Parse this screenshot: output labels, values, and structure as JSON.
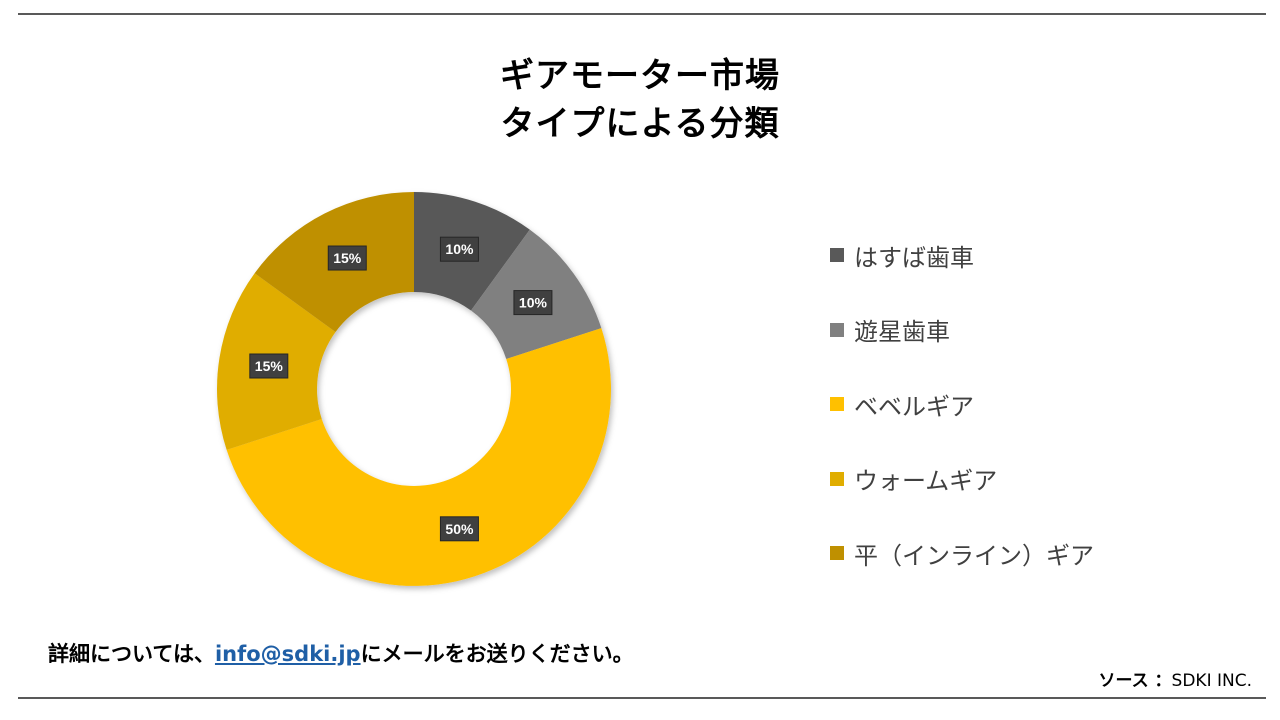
{
  "title": {
    "line1": "ギアモーター市場",
    "line2": "タイプによる分類"
  },
  "chart_data": {
    "type": "pie",
    "subtype": "donut",
    "title": "ギアモーター市場 タイプによる分類",
    "categories": [
      "はすば歯車",
      "遊星歯車",
      "ベベルギア",
      "ウォームギア",
      "平（インライン）ギア"
    ],
    "values": [
      10,
      10,
      50,
      15,
      15
    ],
    "data_labels": [
      "10%",
      "10%",
      "50%",
      "15%",
      "15%"
    ],
    "colors": [
      "#595959",
      "#808080",
      "#FFC000",
      "#E0AD00",
      "#BF9000"
    ],
    "legend_position": "right"
  },
  "footer": {
    "prefix": "詳細については、",
    "email": "info@sdki.jp",
    "suffix": "にメールをお送りください。"
  },
  "source": {
    "label": "ソース ：",
    "value": "SDKI INC."
  }
}
